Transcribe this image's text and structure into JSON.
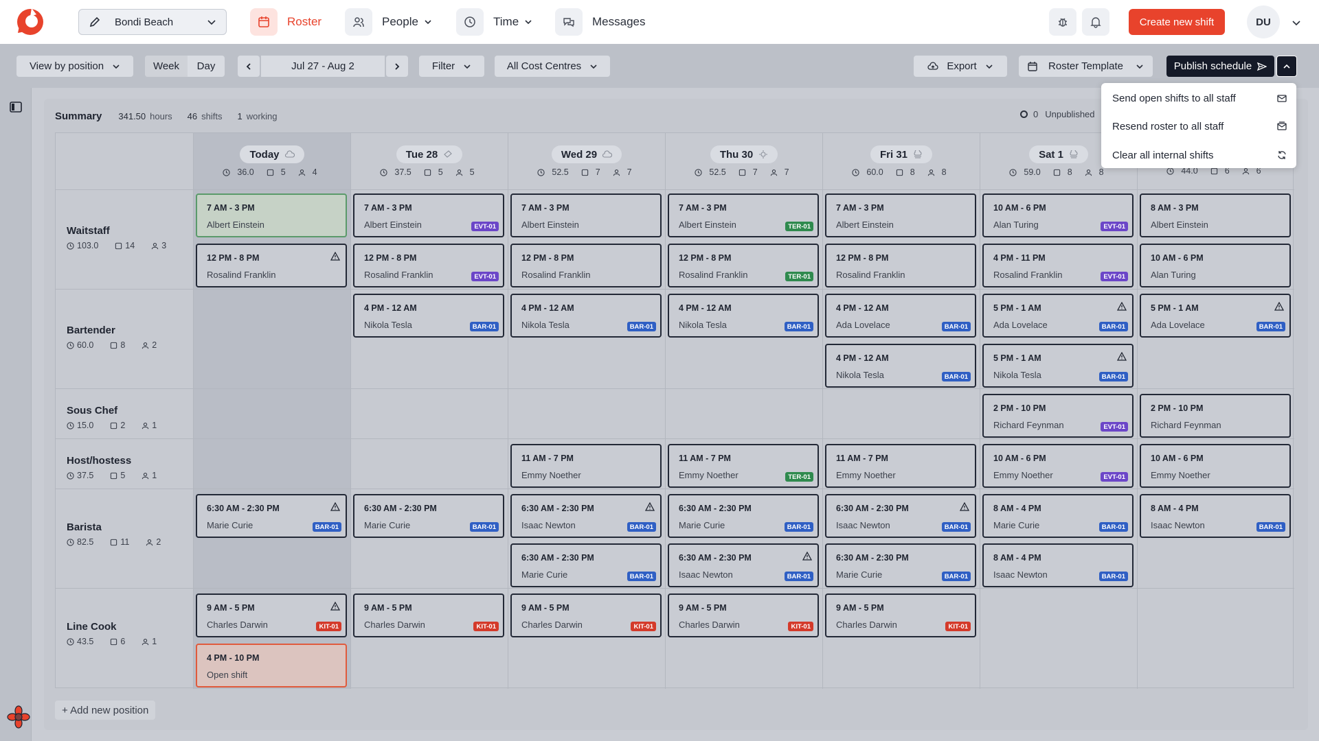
{
  "topnav": {
    "location": "Bondi Beach",
    "nav": [
      {
        "label": "Roster",
        "icon": "calendar-icon",
        "active": true
      },
      {
        "label": "People",
        "icon": "people-icon",
        "dropdown": true
      },
      {
        "label": "Time",
        "icon": "clock-icon",
        "dropdown": true
      },
      {
        "label": "Messages",
        "icon": "messages-icon"
      }
    ],
    "create_label": "Create new shift",
    "avatar": "DU",
    "accent": "#e8432c"
  },
  "toolbar": {
    "view_by": "View by position",
    "week": "Week",
    "day": "Day",
    "date_range": "Jul 27 - Aug 2",
    "filter": "Filter",
    "cost_centres": "All Cost Centres",
    "export": "Export",
    "template": "Roster Template",
    "publish": "Publish schedule"
  },
  "menu": {
    "items": [
      {
        "label": "Send open shifts to all staff",
        "icon": "mail-icon"
      },
      {
        "label": "Resend roster to all staff",
        "icon": "mail-resend-icon"
      },
      {
        "label": "Clear all internal shifts",
        "icon": "refresh-icon"
      }
    ]
  },
  "summary": {
    "title": "Summary",
    "hours": "341.50",
    "hours_unit": "hours",
    "shifts": "46",
    "shifts_unit": "shifts",
    "working": "1",
    "working_unit": "working",
    "unpublished_count": "0",
    "unpublished_label": "Unpublished"
  },
  "days": [
    {
      "label": "Today",
      "hours": "36.0",
      "shifts": "5",
      "people": "4",
      "weather": "cloud"
    },
    {
      "label": "Tue 28",
      "hours": "37.5",
      "shifts": "5",
      "people": "5",
      "weather": "rain"
    },
    {
      "label": "Wed 29",
      "hours": "52.5",
      "shifts": "7",
      "people": "7",
      "weather": "cloud"
    },
    {
      "label": "Thu 30",
      "hours": "52.5",
      "shifts": "7",
      "people": "7",
      "weather": "sun"
    },
    {
      "label": "Fri 31",
      "hours": "60.0",
      "shifts": "8",
      "people": "8",
      "weather": "fog"
    },
    {
      "label": "Sat 1",
      "hours": "59.0",
      "shifts": "8",
      "people": "8",
      "weather": "fog"
    },
    {
      "label": "",
      "hours": "44.0",
      "shifts": "6",
      "people": "6",
      "weather": ""
    }
  ],
  "positions": [
    {
      "name": "Waitstaff",
      "hours": "103.0",
      "shifts": "14",
      "people": "3"
    },
    {
      "name": "Bartender",
      "hours": "60.0",
      "shifts": "8",
      "people": "2"
    },
    {
      "name": "Sous Chef",
      "hours": "15.0",
      "shifts": "2",
      "people": "1"
    },
    {
      "name": "Host/hostess",
      "hours": "37.5",
      "shifts": "5",
      "people": "1"
    },
    {
      "name": "Barista",
      "hours": "82.5",
      "shifts": "11",
      "people": "2"
    },
    {
      "name": "Line Cook",
      "hours": "43.5",
      "shifts": "6",
      "people": "1"
    }
  ],
  "shifts": [
    {
      "day": 0,
      "slot": 0,
      "time": "7 AM - 3 PM",
      "name": "Albert Einstein",
      "style": "green"
    },
    {
      "day": 1,
      "slot": 0,
      "time": "7 AM - 3 PM",
      "name": "Albert Einstein",
      "tag": "EVT-01"
    },
    {
      "day": 2,
      "slot": 0,
      "time": "7 AM - 3 PM",
      "name": "Albert Einstein"
    },
    {
      "day": 3,
      "slot": 0,
      "time": "7 AM - 3 PM",
      "name": "Albert Einstein",
      "tag": "TER-01"
    },
    {
      "day": 4,
      "slot": 0,
      "time": "7 AM - 3 PM",
      "name": "Albert Einstein"
    },
    {
      "day": 5,
      "slot": 0,
      "time": "10 AM - 6 PM",
      "name": "Alan Turing",
      "tag": "EVT-01"
    },
    {
      "day": 6,
      "slot": 0,
      "time": "8 AM - 3 PM",
      "name": "Albert Einstein"
    },
    {
      "day": 0,
      "slot": 1,
      "time": "12 PM - 8 PM",
      "name": "Rosalind Franklin",
      "warn": true
    },
    {
      "day": 1,
      "slot": 1,
      "time": "12 PM - 8 PM",
      "name": "Rosalind Franklin",
      "tag": "EVT-01"
    },
    {
      "day": 2,
      "slot": 1,
      "time": "12 PM - 8 PM",
      "name": "Rosalind Franklin"
    },
    {
      "day": 3,
      "slot": 1,
      "time": "12 PM - 8 PM",
      "name": "Rosalind Franklin",
      "tag": "TER-01"
    },
    {
      "day": 4,
      "slot": 1,
      "time": "12 PM - 8 PM",
      "name": "Rosalind Franklin"
    },
    {
      "day": 5,
      "slot": 1,
      "time": "4 PM - 11 PM",
      "name": "Rosalind Franklin",
      "tag": "EVT-01"
    },
    {
      "day": 6,
      "slot": 1,
      "time": "10 AM - 6 PM",
      "name": "Alan Turing"
    },
    {
      "day": 1,
      "slot": 2,
      "time": "4 PM - 12 AM",
      "name": "Nikola Tesla",
      "tag": "BAR-01"
    },
    {
      "day": 2,
      "slot": 2,
      "time": "4 PM - 12 AM",
      "name": "Nikola Tesla",
      "tag": "BAR-01"
    },
    {
      "day": 3,
      "slot": 2,
      "time": "4 PM - 12 AM",
      "name": "Nikola Tesla",
      "tag": "BAR-01"
    },
    {
      "day": 4,
      "slot": 2,
      "time": "4 PM - 12 AM",
      "name": "Ada Lovelace",
      "tag": "BAR-01"
    },
    {
      "day": 5,
      "slot": 2,
      "time": "5 PM - 1 AM",
      "name": "Ada Lovelace",
      "tag": "BAR-01",
      "warn": true
    },
    {
      "day": 6,
      "slot": 2,
      "time": "5 PM - 1 AM",
      "name": "Ada Lovelace",
      "tag": "BAR-01",
      "warn": true
    },
    {
      "day": 4,
      "slot": 3,
      "time": "4 PM - 12 AM",
      "name": "Nikola Tesla",
      "tag": "BAR-01"
    },
    {
      "day": 5,
      "slot": 3,
      "time": "5 PM - 1 AM",
      "name": "Nikola Tesla",
      "tag": "BAR-01",
      "warn": true
    },
    {
      "day": 5,
      "slot": 4,
      "time": "2 PM - 10 PM",
      "name": "Richard Feynman",
      "tag": "EVT-01"
    },
    {
      "day": 6,
      "slot": 4,
      "time": "2 PM - 10 PM",
      "name": "Richard Feynman"
    },
    {
      "day": 2,
      "slot": 5,
      "time": "11 AM - 7 PM",
      "name": "Emmy Noether"
    },
    {
      "day": 3,
      "slot": 5,
      "time": "11 AM - 7 PM",
      "name": "Emmy Noether",
      "tag": "TER-01"
    },
    {
      "day": 4,
      "slot": 5,
      "time": "11 AM - 7 PM",
      "name": "Emmy Noether"
    },
    {
      "day": 5,
      "slot": 5,
      "time": "10 AM - 6 PM",
      "name": "Emmy Noether",
      "tag": "EVT-01"
    },
    {
      "day": 6,
      "slot": 5,
      "time": "10 AM - 6 PM",
      "name": "Emmy Noether"
    },
    {
      "day": 0,
      "slot": 6,
      "time": "6:30 AM - 2:30 PM",
      "name": "Marie Curie",
      "tag": "BAR-01",
      "warn": true
    },
    {
      "day": 1,
      "slot": 6,
      "time": "6:30 AM - 2:30 PM",
      "name": "Marie Curie",
      "tag": "BAR-01"
    },
    {
      "day": 2,
      "slot": 6,
      "time": "6:30 AM - 2:30 PM",
      "name": "Isaac Newton",
      "tag": "BAR-01",
      "warn": true
    },
    {
      "day": 3,
      "slot": 6,
      "time": "6:30 AM - 2:30 PM",
      "name": "Marie Curie",
      "tag": "BAR-01"
    },
    {
      "day": 4,
      "slot": 6,
      "time": "6:30 AM - 2:30 PM",
      "name": "Isaac Newton",
      "tag": "BAR-01",
      "warn": true
    },
    {
      "day": 5,
      "slot": 6,
      "time": "8 AM - 4 PM",
      "name": "Marie Curie",
      "tag": "BAR-01"
    },
    {
      "day": 6,
      "slot": 6,
      "time": "8 AM - 4 PM",
      "name": "Isaac Newton",
      "tag": "BAR-01"
    },
    {
      "day": 2,
      "slot": 7,
      "time": "6:30 AM - 2:30 PM",
      "name": "Marie Curie",
      "tag": "BAR-01"
    },
    {
      "day": 3,
      "slot": 7,
      "time": "6:30 AM - 2:30 PM",
      "name": "Isaac Newton",
      "tag": "BAR-01",
      "warn": true
    },
    {
      "day": 4,
      "slot": 7,
      "time": "6:30 AM - 2:30 PM",
      "name": "Marie Curie",
      "tag": "BAR-01"
    },
    {
      "day": 5,
      "slot": 7,
      "time": "8 AM - 4 PM",
      "name": "Isaac Newton",
      "tag": "BAR-01"
    },
    {
      "day": 0,
      "slot": 8,
      "time": "9 AM - 5 PM",
      "name": "Charles Darwin",
      "tag": "KIT-01",
      "warn": true
    },
    {
      "day": 1,
      "slot": 8,
      "time": "9 AM - 5 PM",
      "name": "Charles Darwin",
      "tag": "KIT-01"
    },
    {
      "day": 2,
      "slot": 8,
      "time": "9 AM - 5 PM",
      "name": "Charles Darwin",
      "tag": "KIT-01"
    },
    {
      "day": 3,
      "slot": 8,
      "time": "9 AM - 5 PM",
      "name": "Charles Darwin",
      "tag": "KIT-01"
    },
    {
      "day": 4,
      "slot": 8,
      "time": "9 AM - 5 PM",
      "name": "Charles Darwin",
      "tag": "KIT-01"
    },
    {
      "day": 0,
      "slot": 9,
      "time": "4 PM - 10 PM",
      "name": "Open shift",
      "style": "open"
    }
  ],
  "add_position": "+ Add new position"
}
